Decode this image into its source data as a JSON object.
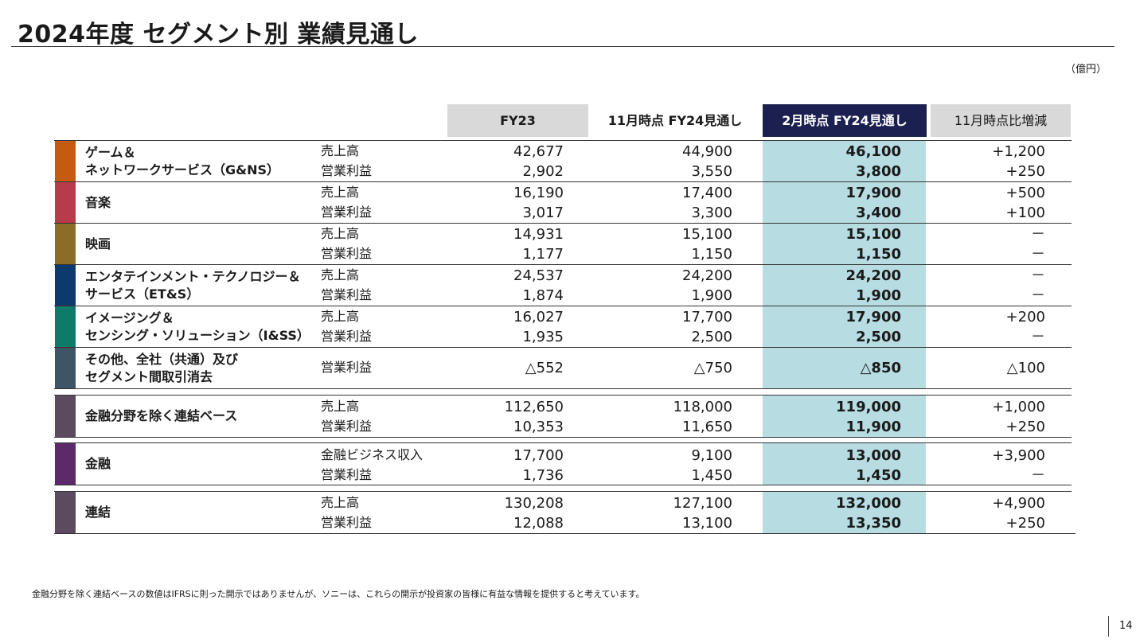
{
  "page": {
    "title": "2024年度  セグメント別 業績見通し",
    "unit": "（億円）",
    "page_number": "14"
  },
  "columns": {
    "fy23": "FY23",
    "nov_fy24": "11月時点 FY24見通し",
    "feb_fy24": "2月時点 FY24見通し",
    "change": "11月時点比増減"
  },
  "colors": {
    "gns": "#c55a11",
    "music": "#b83b4b",
    "pictures": "#8b6d25",
    "ets": "#0d3a6e",
    "iss": "#0e7a6a",
    "other": "#3e5566",
    "ex_fin": "#5c4a61",
    "fin": "#5c2a68",
    "cons": "#5c4a61",
    "header_navy": "#1c2050",
    "highlight": "#b7dde3",
    "header_gray": "#d9d9d9"
  },
  "segments": [
    {
      "name_lines": [
        "ゲーム＆",
        "ネットワークサービス（G&NS）"
      ],
      "rows": [
        {
          "label": "売上高",
          "fy23": "42,677",
          "nov": "44,900",
          "feb": "46,100",
          "chg": "+1,200"
        },
        {
          "label": "営業利益",
          "fy23": "2,902",
          "nov": "3,550",
          "feb": "3,800",
          "chg": "+250"
        }
      ]
    },
    {
      "name_lines": [
        "音楽"
      ],
      "rows": [
        {
          "label": "売上高",
          "fy23": "16,190",
          "nov": "17,400",
          "feb": "17,900",
          "chg": "+500"
        },
        {
          "label": "営業利益",
          "fy23": "3,017",
          "nov": "3,300",
          "feb": "3,400",
          "chg": "+100"
        }
      ]
    },
    {
      "name_lines": [
        "映画"
      ],
      "rows": [
        {
          "label": "売上高",
          "fy23": "14,931",
          "nov": "15,100",
          "feb": "15,100",
          "chg": "－"
        },
        {
          "label": "営業利益",
          "fy23": "1,177",
          "nov": "1,150",
          "feb": "1,150",
          "chg": "－"
        }
      ]
    },
    {
      "name_lines": [
        "エンタテインメント・テクノロジー＆",
        "サービス（ET&S）"
      ],
      "rows": [
        {
          "label": "売上高",
          "fy23": "24,537",
          "nov": "24,200",
          "feb": "24,200",
          "chg": "－"
        },
        {
          "label": "営業利益",
          "fy23": "1,874",
          "nov": "1,900",
          "feb": "1,900",
          "chg": "－"
        }
      ]
    },
    {
      "name_lines": [
        "イメージング＆",
        "センシング・ソリューション（I&SS）"
      ],
      "rows": [
        {
          "label": "売上高",
          "fy23": "16,027",
          "nov": "17,700",
          "feb": "17,900",
          "chg": "+200"
        },
        {
          "label": "営業利益",
          "fy23": "1,935",
          "nov": "2,500",
          "feb": "2,500",
          "chg": "－"
        }
      ]
    },
    {
      "name_lines": [
        "その他、全社（共通）及び",
        "セグメント間取引消去"
      ],
      "rows": [
        {
          "label": "営業利益",
          "fy23": "△552",
          "nov": "△750",
          "feb": "△850",
          "chg": "△100"
        }
      ]
    },
    {
      "name_lines": [
        "金融分野を除く連結ベース"
      ],
      "rows": [
        {
          "label": "売上高",
          "fy23": "112,650",
          "nov": "118,000",
          "feb": "119,000",
          "chg": "+1,000"
        },
        {
          "label": "営業利益",
          "fy23": "10,353",
          "nov": "11,650",
          "feb": "11,900",
          "chg": "+250"
        }
      ]
    },
    {
      "name_lines": [
        "金融"
      ],
      "rows": [
        {
          "label": "金融ビジネス収入",
          "fy23": "17,700",
          "nov": "9,100",
          "feb": "13,000",
          "chg": "+3,900"
        },
        {
          "label": "営業利益",
          "fy23": "1,736",
          "nov": "1,450",
          "feb": "1,450",
          "chg": "－"
        }
      ]
    },
    {
      "name_lines": [
        "連結"
      ],
      "rows": [
        {
          "label": "売上高",
          "fy23": "130,208",
          "nov": "127,100",
          "feb": "132,000",
          "chg": "+4,900"
        },
        {
          "label": "営業利益",
          "fy23": "12,088",
          "nov": "13,100",
          "feb": "13,350",
          "chg": "+250"
        }
      ]
    }
  ],
  "footnote": "金融分野を除く連結ベースの数値はIFRSに則った開示ではありませんが、ソニーは、これらの開示が投資家の皆様に有益な情報を提供すると考えています。"
}
